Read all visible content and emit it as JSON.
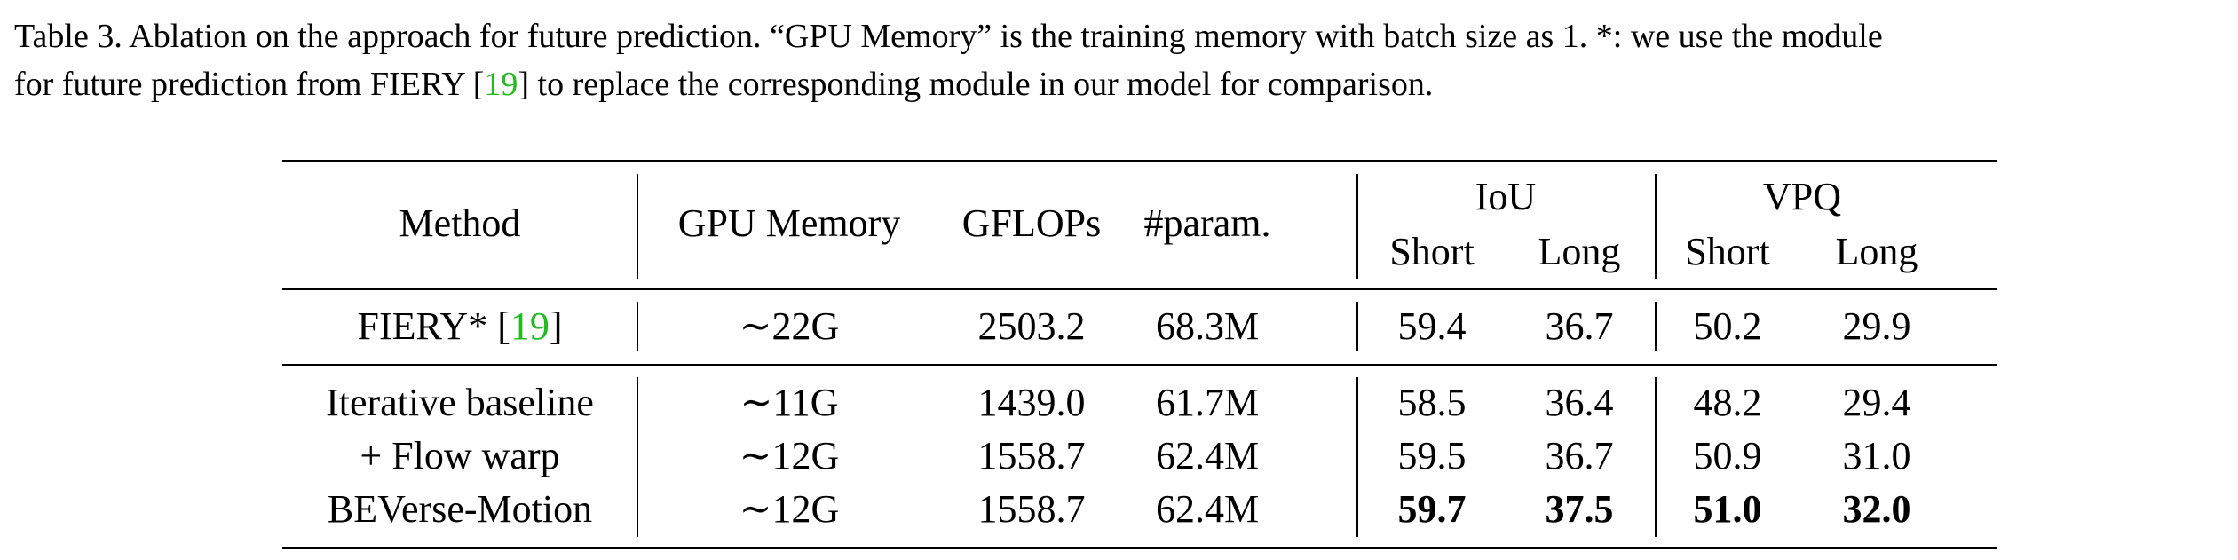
{
  "caption": {
    "line1": "Table 3. Ablation on the approach for future prediction. “GPU Memory” is the training memory with batch size as 1. *: we use the module",
    "line2_before": "for future prediction from FIERY [",
    "line2_cite": "19",
    "line2_after": "] to replace the corresponding module in our model for comparison."
  },
  "header": {
    "method": "Method",
    "gpu_memory": "GPU Memory",
    "gflops": "GFLOPs",
    "params": "#param.",
    "iou": "IoU",
    "vpq": "VPQ",
    "short": "Short",
    "long": "Long"
  },
  "rows": [
    {
      "method": "FIERY* [",
      "method_cite": "19",
      "method_close": "]",
      "gpu_memory": "∼22G",
      "gflops": "2503.2",
      "params": "68.3M",
      "iou_short": "59.4",
      "iou_long": "36.7",
      "vpq_short": "50.2",
      "vpq_long": "29.9"
    },
    {
      "method": "Iterative baseline",
      "gpu_memory": "∼11G",
      "gflops": "1439.0",
      "params": "61.7M",
      "iou_short": "58.5",
      "iou_long": "36.4",
      "vpq_short": "48.2",
      "vpq_long": "29.4"
    },
    {
      "method": "+ Flow warp",
      "gpu_memory": "∼12G",
      "gflops": "1558.7",
      "params": "62.4M",
      "iou_short": "59.5",
      "iou_long": "36.7",
      "vpq_short": "50.9",
      "vpq_long": "31.0"
    },
    {
      "method": "BEVerse-Motion",
      "gpu_memory": "∼12G",
      "gflops": "1558.7",
      "params": "62.4M",
      "iou_short": "59.7",
      "iou_long": "37.5",
      "vpq_short": "51.0",
      "vpq_long": "32.0"
    }
  ]
}
